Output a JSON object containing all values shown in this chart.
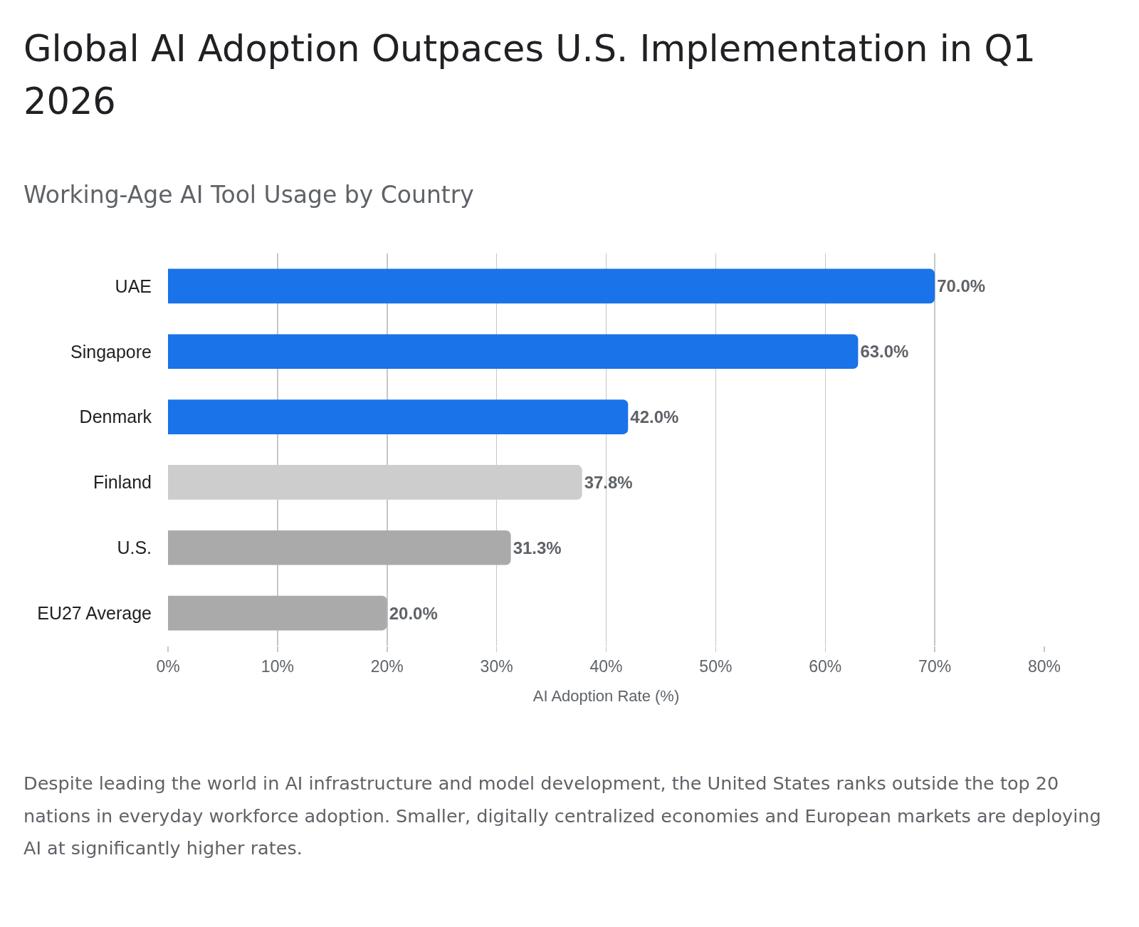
{
  "chart_data": {
    "type": "bar",
    "orientation": "horizontal",
    "title": "Global AI Adoption Outpaces U.S. Implementation in Q1 2026",
    "subtitle": "Working-Age AI Tool Usage by Country",
    "xlabel": "AI Adoption Rate (%)",
    "categories": [
      "UAE",
      "Singapore",
      "Denmark",
      "Finland",
      "U.S.",
      "EU27 Average"
    ],
    "values": [
      70,
      63,
      42,
      37.8,
      31.3,
      20
    ],
    "colors": [
      "#1a73e8",
      "#1a73e8",
      "#1a73e8",
      "#cdcdcd",
      "#aaaaaa",
      "#aaaaaa"
    ],
    "value_labels": [
      "70.0%",
      "63.0%",
      "42.0%",
      "37.8%",
      "31.3%",
      "20.0%"
    ],
    "xlim": [
      0,
      80
    ],
    "xticks": [
      {
        "value": 0,
        "label": "0%"
      },
      {
        "value": 10,
        "label": "10%"
      },
      {
        "value": 20,
        "label": "20%"
      },
      {
        "value": 30,
        "label": "30%"
      },
      {
        "value": 40,
        "label": "40%"
      },
      {
        "value": 50,
        "label": "50%"
      },
      {
        "value": 60,
        "label": "60%"
      },
      {
        "value": 70,
        "label": "70%"
      },
      {
        "value": 80,
        "label": "80%"
      }
    ],
    "grid": "x",
    "annotations": [
      "Despite leading the world in AI infrastructure and model development, the United States ranks outside the top 20 nations in everyday workforce adoption. Smaller, digitally centralized economies and European markets are deploying AI at significantly higher rates."
    ]
  }
}
